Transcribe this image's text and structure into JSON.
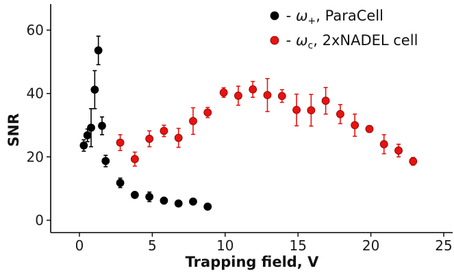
{
  "chart_data": {
    "type": "scatter",
    "xlabel": "Trapping field, V",
    "ylabel": "SNR",
    "xlim": [
      -2,
      25.5
    ],
    "ylim": [
      -3,
      68
    ],
    "x_ticks": [
      0,
      5,
      10,
      15,
      20,
      25
    ],
    "y_ticks": [
      0,
      20,
      40,
      60
    ],
    "legend_position": "top-right",
    "series": [
      {
        "name": "ParaCell",
        "symbol": "ω",
        "subscript": "+",
        "color": "#000000",
        "points": [
          {
            "x": 0.3,
            "y": 23.6,
            "err": 1.8
          },
          {
            "x": 0.55,
            "y": 26.8,
            "err": 2.0
          },
          {
            "x": 0.8,
            "y": 29.2,
            "err": 6.0
          },
          {
            "x": 1.05,
            "y": 41.2,
            "err": 6.0
          },
          {
            "x": 1.3,
            "y": 53.6,
            "err": 4.5
          },
          {
            "x": 1.55,
            "y": 29.8,
            "err": 2.8
          },
          {
            "x": 1.8,
            "y": 18.7,
            "err": 1.8
          },
          {
            "x": 2.8,
            "y": 11.8,
            "err": 1.5
          },
          {
            "x": 3.8,
            "y": 8.0,
            "err": 0.8
          },
          {
            "x": 4.8,
            "y": 7.4,
            "err": 1.5
          },
          {
            "x": 5.8,
            "y": 6.2,
            "err": 0.7
          },
          {
            "x": 6.8,
            "y": 5.3,
            "err": 0.8
          },
          {
            "x": 7.8,
            "y": 5.9,
            "err": 0.9
          },
          {
            "x": 8.8,
            "y": 4.3,
            "err": 0.6
          }
        ]
      },
      {
        "name": "2xNADEL cell",
        "symbol": "ω",
        "subscript": "c",
        "color": "#e8120f",
        "points": [
          {
            "x": 2.8,
            "y": 24.5,
            "err": 2.5
          },
          {
            "x": 3.8,
            "y": 19.3,
            "err": 2.2
          },
          {
            "x": 4.8,
            "y": 25.7,
            "err": 2.5
          },
          {
            "x": 5.8,
            "y": 28.2,
            "err": 1.8
          },
          {
            "x": 6.8,
            "y": 26.0,
            "err": 3.0
          },
          {
            "x": 7.8,
            "y": 31.3,
            "err": 4.2
          },
          {
            "x": 8.8,
            "y": 34.0,
            "err": 1.6
          },
          {
            "x": 9.9,
            "y": 40.3,
            "err": 1.5
          },
          {
            "x": 10.9,
            "y": 39.3,
            "err": 3.0
          },
          {
            "x": 11.9,
            "y": 41.3,
            "err": 2.5
          },
          {
            "x": 12.9,
            "y": 39.5,
            "err": 5.2
          },
          {
            "x": 13.9,
            "y": 39.2,
            "err": 2.0
          },
          {
            "x": 14.9,
            "y": 34.8,
            "err": 5.0
          },
          {
            "x": 15.9,
            "y": 34.7,
            "err": 5.0
          },
          {
            "x": 16.9,
            "y": 37.7,
            "err": 4.2
          },
          {
            "x": 17.9,
            "y": 33.5,
            "err": 3.0
          },
          {
            "x": 18.9,
            "y": 30.0,
            "err": 3.5
          },
          {
            "x": 19.9,
            "y": 28.8,
            "err": 1.0
          },
          {
            "x": 20.9,
            "y": 24.0,
            "err": 3.0
          },
          {
            "x": 21.9,
            "y": 22.0,
            "err": 2.0
          },
          {
            "x": 22.9,
            "y": 18.6,
            "err": 1.2
          }
        ]
      }
    ]
  },
  "legend": {
    "items": [
      {
        "dash": " - ",
        "symbol": "ω",
        "subscript": "+",
        "label": ", ParaCell"
      },
      {
        "dash": " - ",
        "symbol": "ω",
        "subscript": "c",
        "label": ", 2xNADEL cell"
      }
    ]
  }
}
